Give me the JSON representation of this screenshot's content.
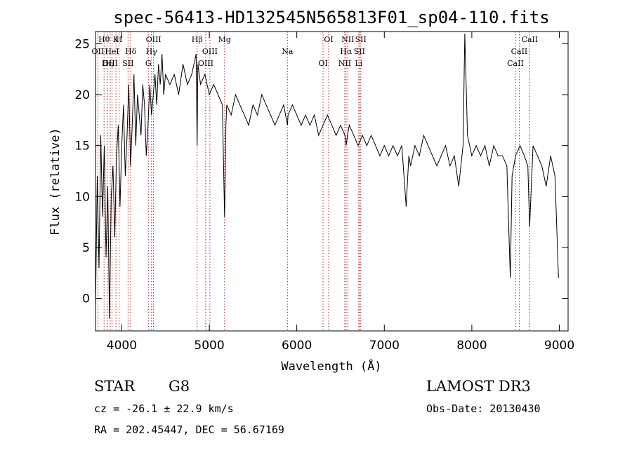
{
  "chart_data": {
    "type": "line",
    "title": "spec-56413-HD132545N565813F01_sp04-110.fits",
    "xlabel": "Wavelength (Å)",
    "ylabel": "Flux (relative)",
    "xlim": [
      3700,
      9100
    ],
    "ylim": [
      -3.2,
      26.2
    ],
    "xticks": [
      4000,
      5000,
      6000,
      7000,
      8000,
      9000
    ],
    "yticks": [
      0,
      5,
      10,
      15,
      20,
      25
    ],
    "grid": false,
    "series": [
      {
        "x": [
          3700,
          3720,
          3740,
          3760,
          3780,
          3800,
          3820,
          3840,
          3860,
          3880,
          3900,
          3920,
          3940,
          3960,
          3980,
          4000,
          4020,
          4040,
          4060,
          4080,
          4100,
          4120,
          4140,
          4160,
          4180,
          4200,
          4220,
          4240,
          4260,
          4280,
          4300,
          4320,
          4340,
          4360,
          4380,
          4400,
          4420,
          4440,
          4460,
          4480,
          4500,
          4550,
          4600,
          4650,
          4700,
          4750,
          4800,
          4850,
          4861,
          4870,
          4900,
          4950,
          5000,
          5050,
          5100,
          5150,
          5175,
          5190,
          5200,
          5250,
          5300,
          5350,
          5400,
          5450,
          5500,
          5550,
          5600,
          5650,
          5700,
          5750,
          5800,
          5850,
          5893,
          5900,
          5950,
          6000,
          6050,
          6100,
          6150,
          6200,
          6250,
          6300,
          6350,
          6400,
          6450,
          6500,
          6550,
          6563,
          6580,
          6600,
          6650,
          6700,
          6750,
          6800,
          6850,
          6900,
          6950,
          7000,
          7050,
          7100,
          7150,
          7200,
          7250,
          7280,
          7300,
          7350,
          7400,
          7450,
          7500,
          7550,
          7600,
          7650,
          7700,
          7750,
          7800,
          7850,
          7900,
          7920,
          7950,
          8000,
          8050,
          8100,
          8150,
          8200,
          8250,
          8300,
          8350,
          8400,
          8440,
          8460,
          8500,
          8550,
          8600,
          8640,
          8660,
          8700,
          8750,
          8800,
          8850,
          8900,
          8950,
          8990
        ],
        "y": [
          -1,
          12,
          3,
          16,
          8,
          15,
          4,
          11,
          -2,
          10,
          13,
          6,
          14,
          17,
          9,
          15,
          19,
          12,
          16,
          21,
          13,
          17,
          22,
          15,
          20,
          18,
          16,
          21,
          19,
          14,
          17,
          21,
          18,
          20,
          22,
          19,
          23,
          21,
          24,
          20,
          22,
          21,
          22,
          20,
          23,
          21,
          22,
          24,
          15,
          23,
          21,
          22,
          20,
          21,
          20,
          19,
          8,
          17,
          19,
          18,
          20,
          19,
          18,
          17,
          19,
          18,
          20,
          19,
          18,
          17,
          18,
          19,
          17,
          18,
          19,
          18,
          17,
          18,
          17,
          18,
          16,
          17,
          18,
          17,
          16,
          17,
          16,
          15,
          16,
          17,
          16,
          15,
          16,
          15,
          16,
          15,
          14,
          15,
          14,
          15,
          14,
          15,
          9,
          14,
          13,
          15,
          14,
          16,
          15,
          14,
          13,
          14,
          15,
          13,
          14,
          11,
          15,
          26,
          16,
          14,
          15,
          14,
          15,
          13,
          15,
          14,
          14,
          13,
          2,
          12,
          14,
          15,
          14,
          13,
          7,
          15,
          14,
          13,
          11,
          14,
          12,
          2
        ]
      }
    ],
    "line_markers": [
      {
        "label": "Hθ",
        "x": 3798
      },
      {
        "label": "OII",
        "x": 3727
      },
      {
        "label": "OIII",
        "x": 3868
      },
      {
        "label": "K",
        "x": 3934
      },
      {
        "label": "HeI",
        "x": 3889
      },
      {
        "label": "Hη",
        "x": 3835
      },
      {
        "label": "H",
        "x": 3969
      },
      {
        "label": "Hδ",
        "x": 4102
      },
      {
        "label": "SII",
        "x": 4072
      },
      {
        "label": "OIII",
        "x": 4363
      },
      {
        "label": "Hγ",
        "x": 4340
      },
      {
        "label": "G",
        "x": 4304
      },
      {
        "label": "Hβ",
        "x": 4861
      },
      {
        "label": "OIII",
        "x": 5007
      },
      {
        "label": "OIII",
        "x": 4959
      },
      {
        "label": "Mg",
        "x": 5175
      },
      {
        "label": "Na",
        "x": 5893
      },
      {
        "label": "OI",
        "x": 6300
      },
      {
        "label": "OI",
        "x": 6364
      },
      {
        "label": "Hα",
        "x": 6563
      },
      {
        "label": "NII",
        "x": 6548
      },
      {
        "label": "NII",
        "x": 6583
      },
      {
        "label": "SII",
        "x": 6716
      },
      {
        "label": "Li",
        "x": 6708
      },
      {
        "label": "SII",
        "x": 6731
      },
      {
        "label": "CaII",
        "x": 8542
      },
      {
        "label": "CaII",
        "x": 8498
      },
      {
        "label": "CaII",
        "x": 8662
      }
    ]
  },
  "info": {
    "object_class": "STAR",
    "subclass": "G8",
    "survey": "LAMOST DR3",
    "cz": "cz = -26.1 ± 22.9 km/s",
    "obs_date": "Obs-Date: 20130430",
    "coords": "RA = 202.45447, DEC =  56.67169"
  },
  "colors": {
    "spectrum": "#000000",
    "marker_lines": "#b22222",
    "axes": "#000000"
  }
}
